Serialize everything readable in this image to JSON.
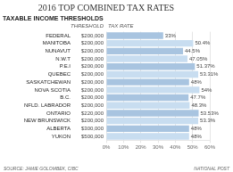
{
  "chart_data": {
    "type": "bar",
    "orientation": "horizontal",
    "title": "2016 TOP COMBINED TAX RATES",
    "subtitle": "TAXABLE INCOME THRESHOLDS",
    "column_headers": [
      "THRESHOLD",
      "TAX RATE"
    ],
    "categories": [
      "FEDERAL",
      "MANITOBA",
      "NUNAVUT",
      "N.W.T",
      "P.E.I",
      "QUEBEC",
      "SASKATCHEWAN",
      "NOVA SCOTIA",
      "B.C.",
      "NFLD. LABRADOR",
      "ONTARIO",
      "NEW BRUNSWICK",
      "ALBERTA",
      "YUKON"
    ],
    "values": [
      33,
      50.4,
      44.5,
      47.05,
      51.37,
      53.31,
      48,
      54,
      47.7,
      48.3,
      53.53,
      53.3,
      48,
      48
    ],
    "value_labels": [
      "33%",
      "50.4%",
      "44.5%",
      "47.05%",
      "51.37%",
      "53.31%",
      "48%",
      "54%",
      "47.7%",
      "48.3%",
      "53.53%",
      "53.3%",
      "48%",
      "48%"
    ],
    "thresholds": [
      "$200,000",
      "$200,000",
      "$200,000",
      "$200,000",
      "$200,000",
      "$200,000",
      "$200,000",
      "$200,000",
      "$200,000",
      "$200,000",
      "$220,000",
      "$200,000",
      "$300,000",
      "$500,000"
    ],
    "colors": [
      "#a8c4e0",
      "#c8ddf0",
      "#a8c4e0",
      "#c8ddf0",
      "#a8c4e0",
      "#c8ddf0",
      "#a8c4e0",
      "#c8ddf0",
      "#a8c4e0",
      "#c8ddf0",
      "#a8c4e0",
      "#c8ddf0",
      "#a8c4e0",
      "#c8ddf0"
    ],
    "xlim": [
      0,
      60
    ],
    "xticks": [
      {
        "value": 0,
        "label": "0%"
      },
      {
        "value": 10,
        "label": "10%"
      },
      {
        "value": 20,
        "label": "20%"
      },
      {
        "value": 30,
        "label": "30%"
      },
      {
        "value": 40,
        "label": "40%"
      },
      {
        "value": 50,
        "label": "50%"
      },
      {
        "value": 60,
        "label": "60%"
      }
    ],
    "grid": true,
    "data_labels": true,
    "source": "SOURCE: JAMIE GOLOMBEK, CIBC",
    "credit": "NATIONAL POST"
  }
}
